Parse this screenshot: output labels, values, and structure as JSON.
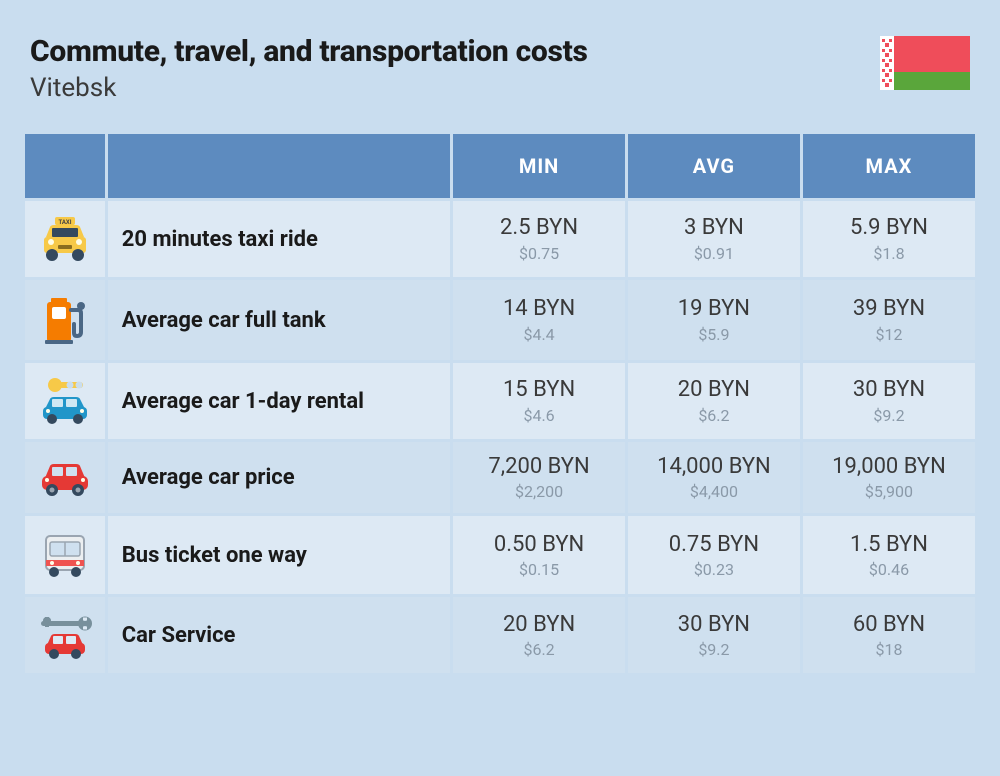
{
  "header": {
    "title": "Commute, travel, and transportation costs",
    "subtitle": "Vitebsk"
  },
  "table": {
    "columns": [
      "MIN",
      "AVG",
      "MAX"
    ],
    "header_bg": "#5d8bbf",
    "header_fg": "#ffffff",
    "row_odd_bg": "#dde9f4",
    "row_even_bg": "#cfe0ef",
    "primary_color": "#3a3a3a",
    "secondary_color": "#8a99a8",
    "label_fontsize": 22,
    "primary_fontsize": 22,
    "secondary_fontsize": 16,
    "rows": [
      {
        "icon": "taxi",
        "label": "20 minutes taxi ride",
        "min": {
          "p": "2.5 BYN",
          "s": "$0.75"
        },
        "avg": {
          "p": "3 BYN",
          "s": "$0.91"
        },
        "max": {
          "p": "5.9 BYN",
          "s": "$1.8"
        }
      },
      {
        "icon": "fuel",
        "label": "Average car full tank",
        "min": {
          "p": "14 BYN",
          "s": "$4.4"
        },
        "avg": {
          "p": "19 BYN",
          "s": "$5.9"
        },
        "max": {
          "p": "39 BYN",
          "s": "$12"
        }
      },
      {
        "icon": "rental",
        "label": "Average car 1-day rental",
        "min": {
          "p": "15 BYN",
          "s": "$4.6"
        },
        "avg": {
          "p": "20 BYN",
          "s": "$6.2"
        },
        "max": {
          "p": "30 BYN",
          "s": "$9.2"
        }
      },
      {
        "icon": "car",
        "label": "Average car price",
        "min": {
          "p": "7,200 BYN",
          "s": "$2,200"
        },
        "avg": {
          "p": "14,000 BYN",
          "s": "$4,400"
        },
        "max": {
          "p": "19,000 BYN",
          "s": "$5,900"
        }
      },
      {
        "icon": "bus",
        "label": "Bus ticket one way",
        "min": {
          "p": "0.50 BYN",
          "s": "$0.15"
        },
        "avg": {
          "p": "0.75 BYN",
          "s": "$0.23"
        },
        "max": {
          "p": "1.5 BYN",
          "s": "$0.46"
        }
      },
      {
        "icon": "service",
        "label": "Car Service",
        "min": {
          "p": "20 BYN",
          "s": "$6.2"
        },
        "avg": {
          "p": "30 BYN",
          "s": "$9.2"
        },
        "max": {
          "p": "60 BYN",
          "s": "$18"
        }
      }
    ]
  },
  "flag": {
    "colors": {
      "red": "#ef4d5a",
      "green": "#5aa63b",
      "ornament_bg": "#ffffff",
      "ornament_fg": "#ef4d5a"
    },
    "width": 90,
    "height": 54
  },
  "page_bg": "#c9ddef"
}
